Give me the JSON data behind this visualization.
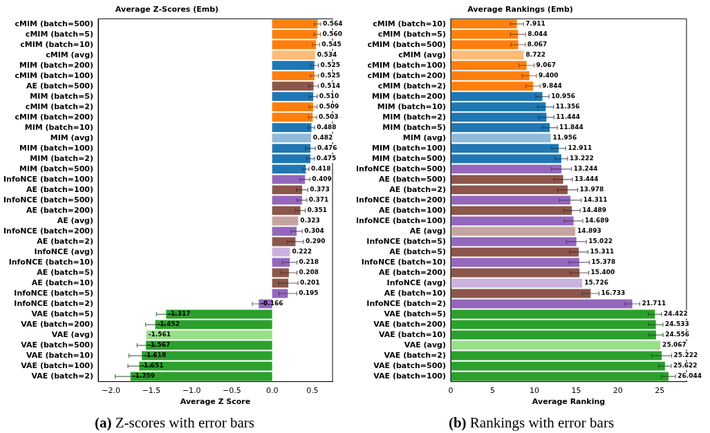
{
  "chart_data": [
    {
      "type": "bar",
      "orientation": "horizontal",
      "title": "Average Z-Scores (Emb)",
      "xlabel": "Average Z Score",
      "categories": [
        "cMIM (batch=500)",
        "cMIM (batch=5)",
        "cMIM (batch=10)",
        "cMIM (avg)",
        "MIM (batch=200)",
        "cMIM (batch=100)",
        "AE (batch=500)",
        "MIM (batch=5)",
        "cMIM (batch=2)",
        "cMIM (batch=200)",
        "MIM (batch=10)",
        "MIM (avg)",
        "MIM (batch=100)",
        "MIM (batch=2)",
        "MIM (batch=500)",
        "InfoNCE (batch=100)",
        "AE (batch=100)",
        "InfoNCE (batch=500)",
        "AE (batch=200)",
        "AE (avg)",
        "InfoNCE (batch=200)",
        "AE (batch=2)",
        "InfoNCE (avg)",
        "InfoNCE (batch=10)",
        "AE (batch=5)",
        "AE (batch=10)",
        "InfoNCE (batch=5)",
        "InfoNCE (batch=2)",
        "VAE (batch=5)",
        "VAE (batch=200)",
        "VAE (avg)",
        "VAE (batch=500)",
        "VAE (batch=10)",
        "VAE (batch=100)",
        "VAE (batch=2)"
      ],
      "values": [
        0.564,
        0.56,
        0.545,
        0.534,
        0.525,
        0.525,
        0.514,
        0.51,
        0.509,
        0.503,
        0.488,
        0.482,
        0.476,
        0.475,
        0.418,
        0.409,
        0.373,
        0.371,
        0.351,
        0.323,
        0.304,
        0.29,
        0.222,
        0.218,
        0.208,
        0.201,
        0.195,
        -0.166,
        -1.317,
        -1.452,
        -1.561,
        -1.567,
        -1.618,
        -1.651,
        -1.759
      ],
      "errors": [
        0.04,
        0.04,
        0.045,
        null,
        0.05,
        0.05,
        0.06,
        0.05,
        0.05,
        0.05,
        0.04,
        null,
        0.06,
        0.05,
        0.04,
        0.06,
        0.07,
        0.06,
        0.06,
        null,
        0.07,
        0.1,
        null,
        0.09,
        0.1,
        0.12,
        0.11,
        0.08,
        0.12,
        0.12,
        null,
        0.11,
        0.16,
        0.14,
        0.19
      ],
      "colors": [
        "#ff7f0e",
        "#ff7f0e",
        "#ff7f0e",
        "#ffbb78",
        "#1f77b4",
        "#ff7f0e",
        "#8c564b",
        "#1f77b4",
        "#ff7f0e",
        "#ff7f0e",
        "#1f77b4",
        "#8fbbd9",
        "#1f77b4",
        "#1f77b4",
        "#1f77b4",
        "#9467bd",
        "#8c564b",
        "#9467bd",
        "#8c564b",
        "#c5a59f",
        "#9467bd",
        "#8c564b",
        "#c9b3dd",
        "#9467bd",
        "#8c564b",
        "#8c564b",
        "#9467bd",
        "#9467bd",
        "#2ca02c",
        "#2ca02c",
        "#98df8a",
        "#2ca02c",
        "#2ca02c",
        "#2ca02c",
        "#2ca02c"
      ],
      "value_labels": [
        "0.564",
        "0.560",
        "0.545",
        "0.534",
        "0.525",
        "0.525",
        "0.514",
        "0.510",
        "0.509",
        "0.503",
        "0.488",
        "0.482",
        "0.476",
        "0.475",
        "0.418",
        "0.409",
        "0.373",
        "0.371",
        "0.351",
        "0.323",
        "0.304",
        "0.290",
        "0.222",
        "0.218",
        "0.208",
        "0.201",
        "0.195",
        "-0.166",
        "-1.317",
        "-1.452",
        "-1.561",
        "-1.567",
        "-1.618",
        "-1.651",
        "-1.759"
      ],
      "xlim": [
        -2.16,
        0.75
      ],
      "xticks": [
        {
          "value": -2,
          "label": "−2.0"
        },
        {
          "value": -1.5,
          "label": "−1.5"
        },
        {
          "value": -1,
          "label": "−1.0"
        },
        {
          "value": -0.5,
          "label": "−0.5"
        },
        {
          "value": 0,
          "label": "0.0"
        },
        0.5
      ],
      "grid": false,
      "legend": false,
      "annotations": [
        "(a) Z-scores with error bars"
      ]
    },
    {
      "type": "bar",
      "orientation": "horizontal",
      "title": "Average Rankings (Emb)",
      "xlabel": "Average Ranking",
      "categories": [
        "cMIM (batch=10)",
        "cMIM (batch=5)",
        "cMIM (batch=500)",
        "cMIM (avg)",
        "cMIM (batch=100)",
        "cMIM (batch=200)",
        "cMIM (batch=2)",
        "MIM (batch=200)",
        "MIM (batch=10)",
        "MIM (batch=2)",
        "MIM (batch=5)",
        "MIM (avg)",
        "MIM (batch=100)",
        "MIM (batch=500)",
        "InfoNCE (batch=500)",
        "AE (batch=500)",
        "AE (batch=2)",
        "InfoNCE (batch=200)",
        "AE (batch=100)",
        "InfoNCE (batch=100)",
        "AE (avg)",
        "InfoNCE (batch=5)",
        "AE (batch=5)",
        "InfoNCE (batch=10)",
        "AE (batch=200)",
        "InfoNCE (avg)",
        "AE (batch=10)",
        "InfoNCE (batch=2)",
        "VAE (batch=5)",
        "VAE (batch=200)",
        "VAE (batch=10)",
        "VAE (avg)",
        "VAE (batch=2)",
        "VAE (batch=500)",
        "VAE (batch=100)"
      ],
      "values": [
        7.911,
        8.044,
        8.067,
        8.722,
        9.067,
        9.4,
        9.844,
        10.956,
        11.356,
        11.444,
        11.844,
        11.956,
        12.911,
        13.222,
        13.244,
        13.444,
        13.978,
        14.311,
        14.489,
        14.689,
        14.893,
        15.022,
        15.311,
        15.378,
        15.4,
        15.726,
        16.733,
        21.711,
        24.422,
        24.533,
        24.556,
        25.067,
        25.222,
        25.622,
        26.044
      ],
      "errors": [
        0.8,
        0.9,
        0.85,
        null,
        0.9,
        0.85,
        0.85,
        0.8,
        0.95,
        0.9,
        0.9,
        null,
        0.85,
        0.75,
        1.2,
        1.1,
        1.2,
        1.3,
        1.0,
        1.1,
        null,
        1.2,
        1.1,
        1.2,
        1.1,
        null,
        1.0,
        0.9,
        0.8,
        0.85,
        0.85,
        null,
        1.2,
        0.75,
        0.85
      ],
      "colors": [
        "#ff7f0e",
        "#ff7f0e",
        "#ff7f0e",
        "#ffbb78",
        "#ff7f0e",
        "#ff7f0e",
        "#ff7f0e",
        "#1f77b4",
        "#1f77b4",
        "#1f77b4",
        "#1f77b4",
        "#8fbbd9",
        "#1f77b4",
        "#1f77b4",
        "#9467bd",
        "#8c564b",
        "#8c564b",
        "#9467bd",
        "#8c564b",
        "#9467bd",
        "#c5a59f",
        "#9467bd",
        "#8c564b",
        "#9467bd",
        "#8c564b",
        "#c9b3dd",
        "#8c564b",
        "#9467bd",
        "#2ca02c",
        "#2ca02c",
        "#2ca02c",
        "#98df8a",
        "#2ca02c",
        "#2ca02c",
        "#2ca02c"
      ],
      "value_labels": [
        "7.911",
        "8.044",
        "8.067",
        "8.722",
        "9.067",
        "9.400",
        "9.844",
        "10.956",
        "11.356",
        "11.444",
        "11.844",
        "11.956",
        "12.911",
        "13.222",
        "13.244",
        "13.444",
        "13.978",
        "14.311",
        "14.489",
        "14.689",
        "14.893",
        "15.022",
        "15.311",
        "15.378",
        "15.400",
        "15.726",
        "16.733",
        "21.711",
        "24.422",
        "24.533",
        "24.556",
        "25.067",
        "25.222",
        "25.622",
        "26.044"
      ],
      "xlim": [
        0,
        28.2
      ],
      "xticks": [
        0,
        5,
        10,
        15,
        20,
        25
      ],
      "grid": false,
      "legend": false,
      "annotations": [
        "(b) Rankings with error bars"
      ]
    }
  ]
}
